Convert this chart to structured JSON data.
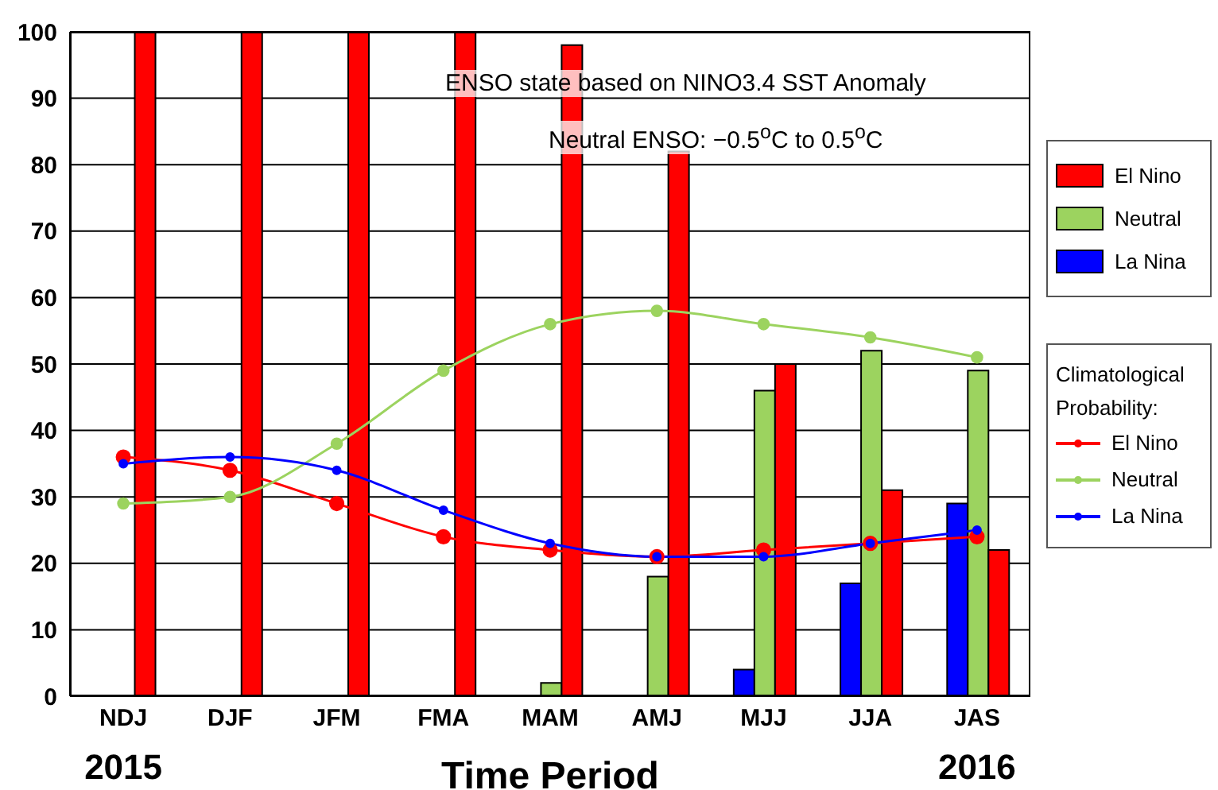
{
  "chart_data": {
    "type": "bar",
    "xlabel": "Time Period",
    "categories": [
      "NDJ",
      "DJF",
      "JFM",
      "FMA",
      "MAM",
      "AMJ",
      "MJJ",
      "JJA",
      "JAS"
    ],
    "series": [
      {
        "name": "La Nina",
        "color": "#0000ff",
        "values": [
          0,
          0,
          0,
          0,
          0,
          0,
          4,
          17,
          29
        ]
      },
      {
        "name": "Neutral",
        "color": "#9cd35f",
        "values": [
          0,
          0,
          0,
          0,
          2,
          18,
          46,
          52,
          49
        ]
      },
      {
        "name": "El Nino",
        "color": "#ff0000",
        "values": [
          100,
          100,
          100,
          100,
          98,
          82,
          50,
          31,
          22
        ]
      },
      {
        "name": "El Nino",
        "type": "line",
        "color": "#ff0000",
        "values": [
          36,
          34,
          29,
          24,
          22,
          21,
          22,
          23,
          24
        ]
      },
      {
        "name": "Neutral",
        "type": "line",
        "color": "#9cd35f",
        "values": [
          29,
          30,
          38,
          49,
          56,
          58,
          56,
          54,
          51
        ]
      },
      {
        "name": "La Nina",
        "type": "line",
        "color": "#0000ff",
        "values": [
          35,
          36,
          34,
          28,
          23,
          21,
          21,
          23,
          25
        ]
      }
    ],
    "legend_title": "Climatological Probability:",
    "legend": "right",
    "marker": "circle",
    "ylim": [
      0,
      100
    ],
    "yticks": [
      0,
      10,
      20,
      30,
      40,
      50,
      60,
      70,
      80,
      90,
      100
    ],
    "grid": "y",
    "annotations": [
      "ENSO state based on NINO3.4 SST Anomaly",
      "Neutral ENSO: −0.5$^{o}$C to 0.5$^{o}$C",
      "2015",
      "2016"
    ]
  }
}
